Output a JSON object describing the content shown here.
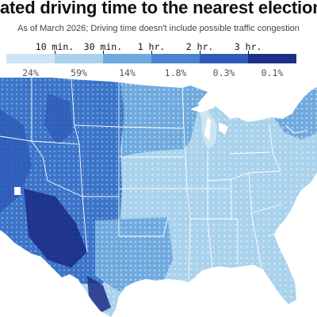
{
  "header": {
    "title": "ated driving time to the nearest election",
    "subtitle": "As of March 2026; Driving time doesn't include possible traffic congestion"
  },
  "legend": {
    "tick_labels": [
      "10 min.",
      "30 min.",
      "1 hr.",
      "2 hr.",
      "3 hr."
    ],
    "bins": [
      {
        "share": "24%",
        "color": "#cde4f2"
      },
      {
        "share": "59%",
        "color": "#a9d2ec"
      },
      {
        "share": "14%",
        "color": "#6fa9de"
      },
      {
        "share": "1.8%",
        "color": "#4a83cf"
      },
      {
        "share": "0.3%",
        "color": "#2e5bb8"
      },
      {
        "share": "0.1%",
        "color": "#1c2f86"
      }
    ]
  },
  "map": {
    "region": "contiguous-united-states",
    "colors": {
      "background": "#ffffff",
      "state_border": "#ffffff",
      "near_eastern": "#a9d2ec",
      "light_fill": "#cde4f2",
      "mid_fill": "#6fa9de",
      "west_fill": "#3d73c8",
      "remote_fill": "#1c2f86"
    }
  }
}
